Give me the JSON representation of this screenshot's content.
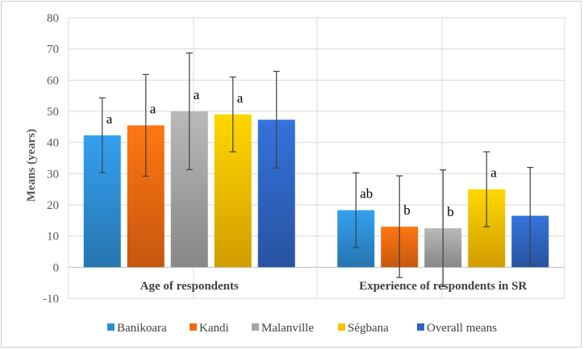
{
  "chart_data": {
    "type": "bar",
    "title": "",
    "xlabel": "",
    "ylabel": "Means (years)",
    "ylim": [
      -10,
      80
    ],
    "yticks": [
      -10,
      0,
      10,
      20,
      30,
      40,
      50,
      60,
      70,
      80
    ],
    "grid": true,
    "legend_position": "bottom",
    "categories": [
      "Age of respondents",
      "Experience of respondents in SR"
    ],
    "series": [
      {
        "name": "Banikoara",
        "color": "#2e8fd6",
        "values": [
          42.3,
          18.3
        ],
        "errors": [
          12.0,
          12.0
        ],
        "labels": [
          "a",
          "ab"
        ]
      },
      {
        "name": "Kandi",
        "color": "#f26a11",
        "values": [
          45.5,
          13.0
        ],
        "errors": [
          16.3,
          16.3
        ],
        "labels": [
          "a",
          "b"
        ]
      },
      {
        "name": "Malanville",
        "color": "#a5a5a5",
        "values": [
          50.0,
          12.5
        ],
        "errors": [
          18.7,
          18.7
        ],
        "labels": [
          "a",
          "b"
        ]
      },
      {
        "name": "Ségbana",
        "color": "#ffc000",
        "values": [
          49.0,
          25.0
        ],
        "errors": [
          12.0,
          12.0
        ],
        "labels": [
          "a",
          "a"
        ]
      },
      {
        "name": "Overall means",
        "color": "#2f66c4",
        "values": [
          47.3,
          16.5
        ],
        "errors": [
          15.5,
          15.5
        ],
        "labels": [
          "",
          ""
        ]
      }
    ]
  }
}
